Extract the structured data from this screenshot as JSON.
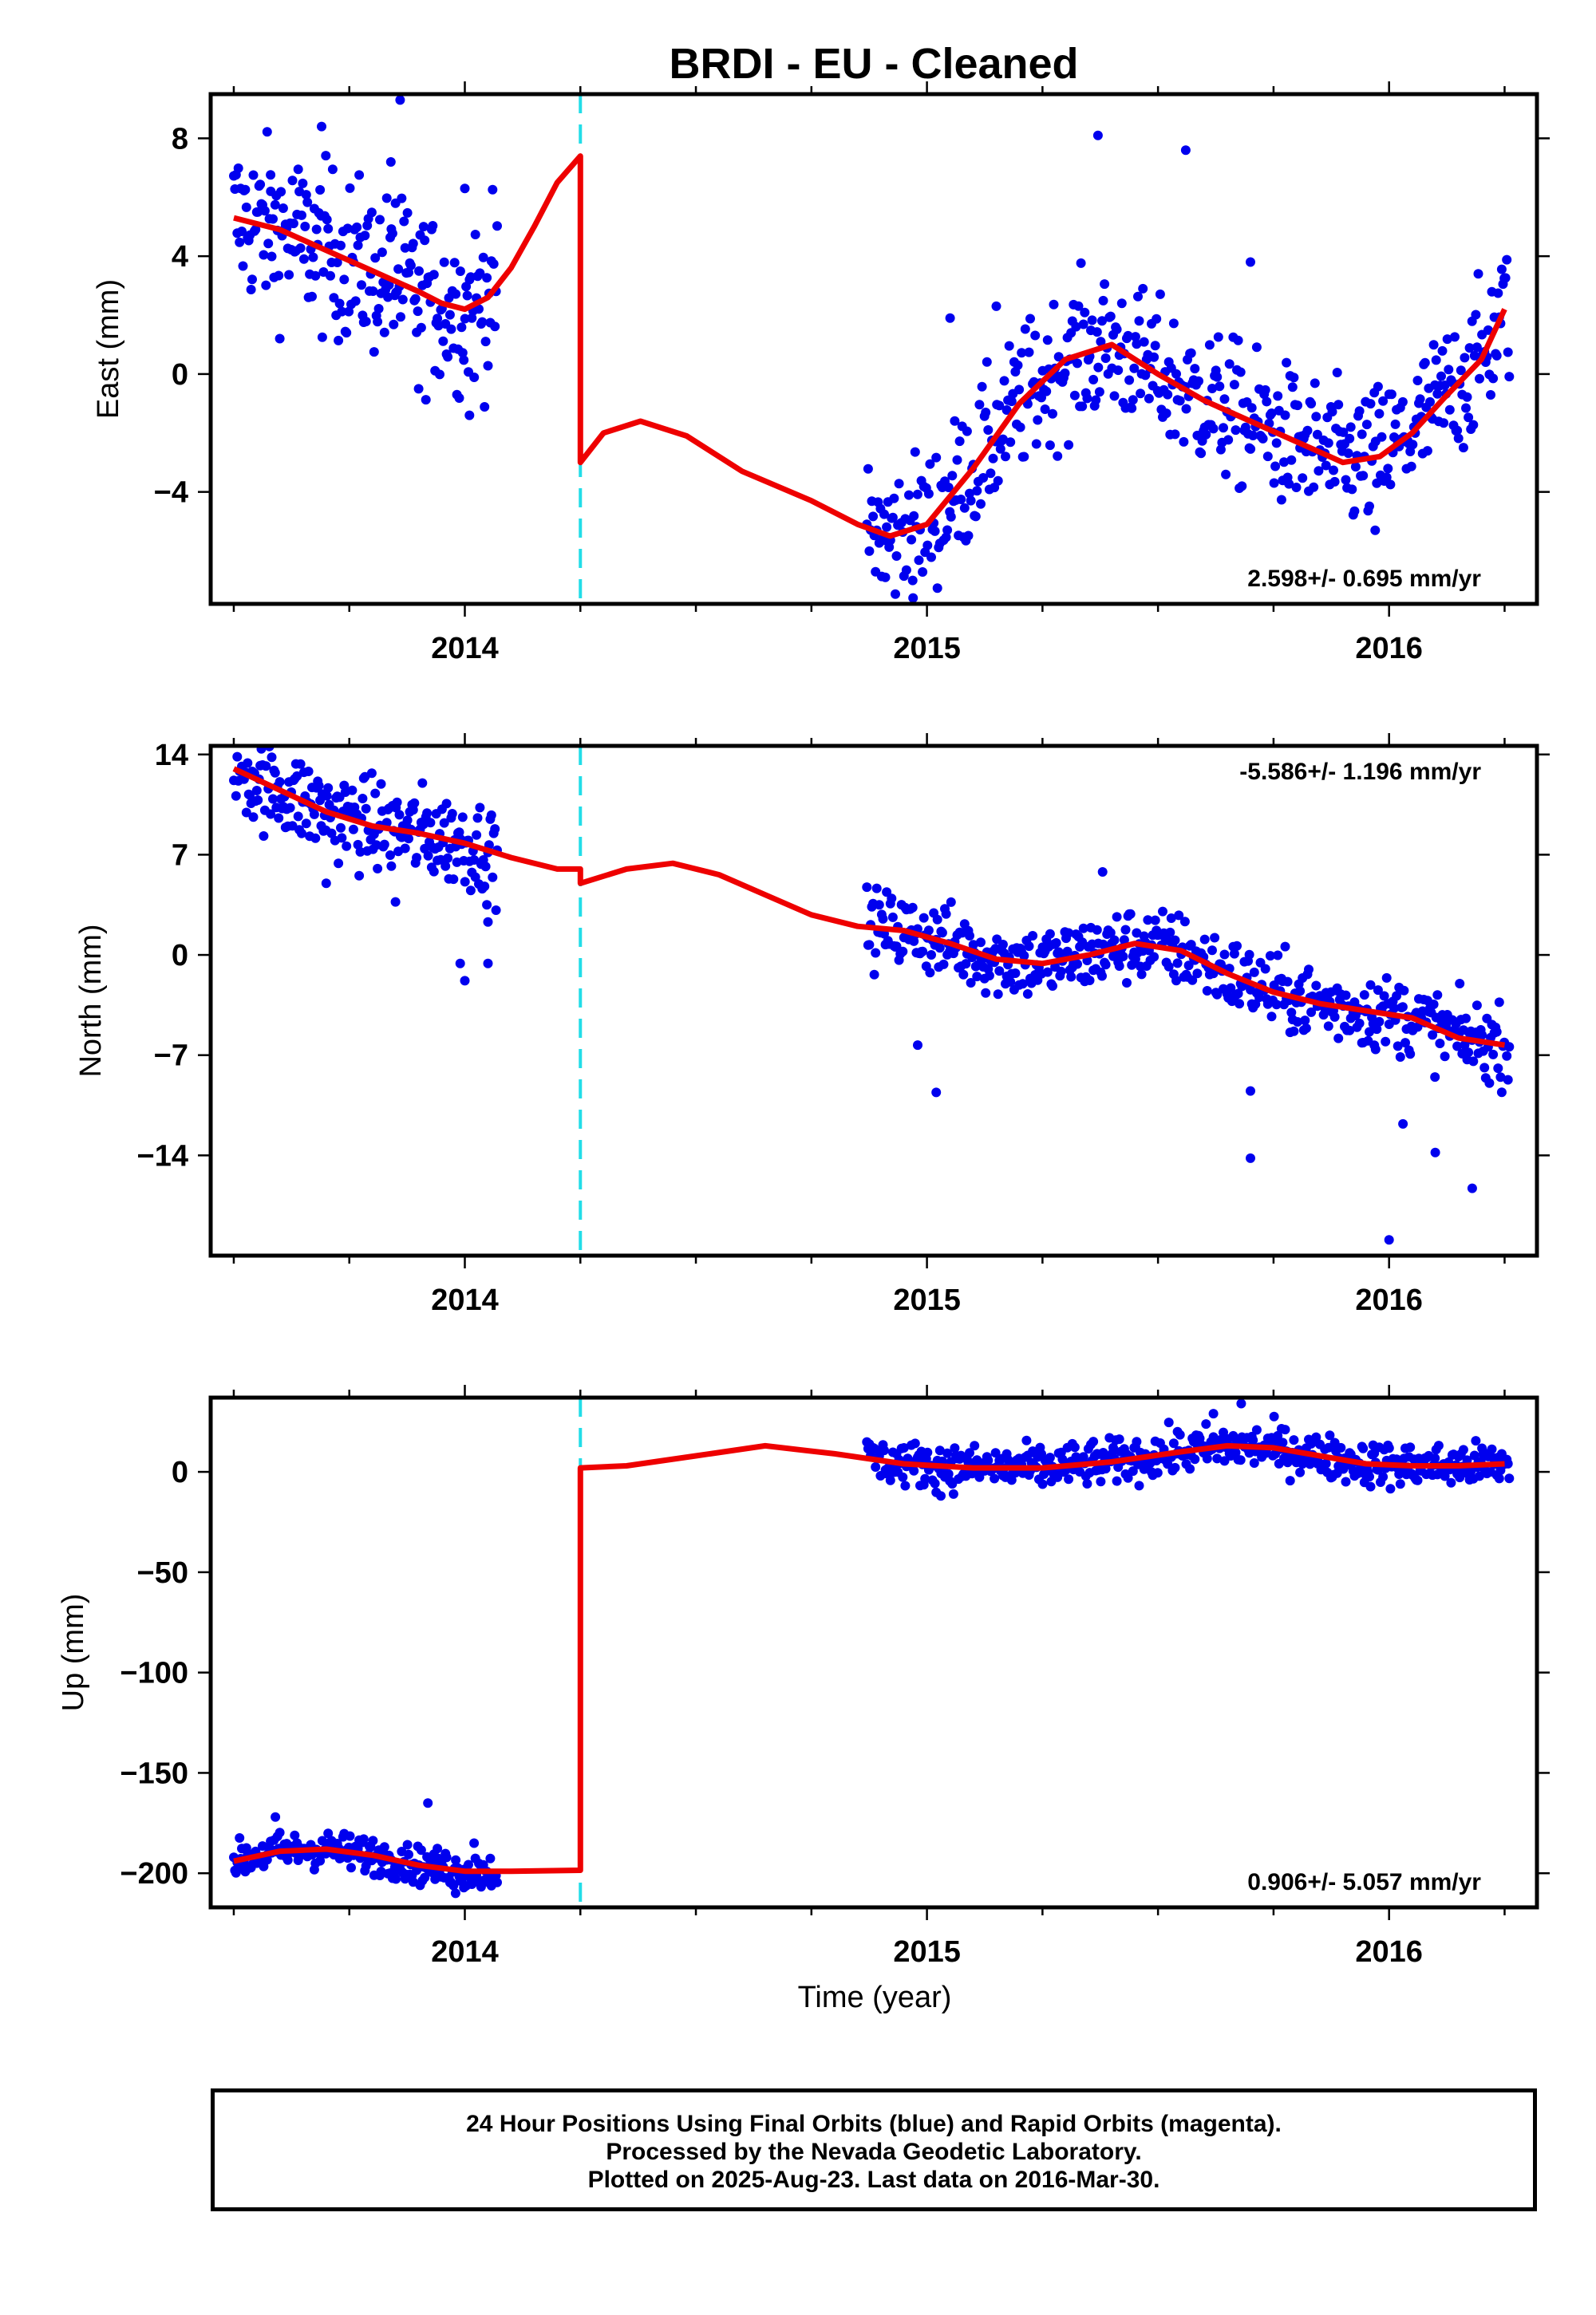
{
  "chart_data": {
    "title": "BRDI  - EU - Cleaned",
    "xlabel": "Time (year)",
    "x_range": [
      2013.45,
      2016.32
    ],
    "x_ticks": [
      2014,
      2015,
      2016
    ],
    "break_epoch": 2014.25,
    "colors": {
      "points": "#0000ee",
      "fit": "#ee0000",
      "break": "#22dde8"
    },
    "panels": [
      {
        "key": "east",
        "type": "scatter",
        "ylabel": "East (mm)",
        "ylim": [
          -7.8,
          9.5
        ],
        "y_ticks": [
          8,
          4,
          0,
          -4
        ],
        "rate": "2.598+/- 0.695 mm/yr",
        "fit": [
          [
            2013.5,
            5.3
          ],
          [
            2013.6,
            4.9
          ],
          [
            2013.7,
            4.2
          ],
          [
            2013.8,
            3.5
          ],
          [
            2013.9,
            2.8
          ],
          [
            2013.95,
            2.4
          ],
          [
            2014.0,
            2.2
          ],
          [
            2014.05,
            2.6
          ],
          [
            2014.1,
            3.6
          ],
          [
            2014.15,
            5.0
          ],
          [
            2014.2,
            6.5
          ],
          [
            2014.25,
            7.4
          ],
          [
            2014.25,
            -3.0
          ],
          [
            2014.3,
            -2.0
          ],
          [
            2014.38,
            -1.6
          ],
          [
            2014.48,
            -2.1
          ],
          [
            2014.6,
            -3.3
          ],
          [
            2014.75,
            -4.3
          ],
          [
            2014.85,
            -5.1
          ],
          [
            2014.92,
            -5.5
          ],
          [
            2015.0,
            -5.1
          ],
          [
            2015.1,
            -3.2
          ],
          [
            2015.2,
            -1.0
          ],
          [
            2015.3,
            0.5
          ],
          [
            2015.4,
            1.0
          ],
          [
            2015.5,
            0.0
          ],
          [
            2015.6,
            -0.9
          ],
          [
            2015.7,
            -1.6
          ],
          [
            2015.8,
            -2.3
          ],
          [
            2015.9,
            -3.0
          ],
          [
            2015.98,
            -2.8
          ],
          [
            2016.05,
            -2.0
          ],
          [
            2016.12,
            -0.8
          ],
          [
            2016.2,
            0.5
          ],
          [
            2016.25,
            2.2
          ]
        ],
        "segments": [
          {
            "x0": 2013.5,
            "x1": 2014.07,
            "n": 230,
            "spread": 1.4,
            "outliers": [
              [
                2013.69,
                8.4
              ],
              [
                2013.86,
                9.3
              ],
              [
                2013.84,
                7.2
              ],
              [
                2013.85,
                5.8
              ],
              [
                2013.9,
                -0.5
              ],
              [
                2014.01,
                -1.4
              ],
              [
                2013.58,
                6.2
              ],
              [
                2014.0,
                6.3
              ]
            ]
          },
          {
            "x0": 2014.87,
            "x1": 2016.26,
            "n": 520,
            "spread": 1.2,
            "outliers": [
              [
                2015.37,
                8.1
              ],
              [
                2015.56,
                7.6
              ],
              [
                2015.7,
                3.8
              ],
              [
                2015.97,
                -5.3
              ],
              [
                2014.97,
                -7.6
              ],
              [
                2014.91,
                -6.9
              ],
              [
                2015.15,
                2.3
              ],
              [
                2015.05,
                1.9
              ]
            ]
          }
        ]
      },
      {
        "key": "north",
        "type": "scatter",
        "ylabel": "North (mm)",
        "ylim": [
          -21,
          14.6
        ],
        "y_ticks": [
          14,
          7,
          0,
          -7,
          -14
        ],
        "rate": "-5.586+/- 1.196 mm/yr",
        "fit": [
          [
            2013.5,
            13.0
          ],
          [
            2013.6,
            11.5
          ],
          [
            2013.7,
            10.0
          ],
          [
            2013.8,
            9.0
          ],
          [
            2013.9,
            8.5
          ],
          [
            2014.0,
            7.8
          ],
          [
            2014.1,
            6.8
          ],
          [
            2014.2,
            6.0
          ],
          [
            2014.25,
            6.0
          ],
          [
            2014.25,
            5.0
          ],
          [
            2014.35,
            6.0
          ],
          [
            2014.45,
            6.4
          ],
          [
            2014.55,
            5.6
          ],
          [
            2014.65,
            4.2
          ],
          [
            2014.75,
            2.8
          ],
          [
            2014.85,
            2.0
          ],
          [
            2014.95,
            1.7
          ],
          [
            2015.05,
            0.8
          ],
          [
            2015.15,
            -0.3
          ],
          [
            2015.25,
            -0.6
          ],
          [
            2015.35,
            0.0
          ],
          [
            2015.45,
            0.8
          ],
          [
            2015.55,
            0.3
          ],
          [
            2015.65,
            -1.3
          ],
          [
            2015.75,
            -2.6
          ],
          [
            2015.85,
            -3.4
          ],
          [
            2015.95,
            -3.9
          ],
          [
            2016.05,
            -4.4
          ],
          [
            2016.15,
            -5.8
          ],
          [
            2016.25,
            -6.3
          ]
        ],
        "segments": [
          {
            "x0": 2013.5,
            "x1": 2014.07,
            "n": 230,
            "spread": 1.6,
            "outliers": [
              [
                2013.99,
                -0.6
              ],
              [
                2014.0,
                -1.8
              ],
              [
                2014.05,
                -0.6
              ],
              [
                2014.05,
                2.3
              ],
              [
                2013.85,
                3.7
              ],
              [
                2013.7,
                5.0
              ]
            ]
          },
          {
            "x0": 2014.87,
            "x1": 2016.26,
            "n": 520,
            "spread": 1.3,
            "outliers": [
              [
                2015.02,
                -9.6
              ],
              [
                2015.7,
                -14.2
              ],
              [
                2015.7,
                -9.5
              ],
              [
                2016.03,
                -11.8
              ],
              [
                2016.0,
                -19.9
              ],
              [
                2016.1,
                -13.8
              ],
              [
                2016.18,
                -16.3
              ],
              [
                2015.38,
                5.8
              ],
              [
                2014.98,
                -6.3
              ]
            ]
          }
        ]
      },
      {
        "key": "up",
        "type": "scatter",
        "ylabel": "Up (mm)",
        "ylim": [
          -217,
          37
        ],
        "y_ticks": [
          0,
          -50,
          -100,
          -150,
          -200
        ],
        "rate": "0.906+/- 5.057 mm/yr",
        "fit": [
          [
            2013.5,
            -194
          ],
          [
            2013.6,
            -189
          ],
          [
            2013.7,
            -188
          ],
          [
            2013.8,
            -191
          ],
          [
            2013.9,
            -196
          ],
          [
            2014.0,
            -199
          ],
          [
            2014.1,
            -199
          ],
          [
            2014.25,
            -198.5
          ],
          [
            2014.25,
            2
          ],
          [
            2014.35,
            3
          ],
          [
            2014.5,
            8
          ],
          [
            2014.65,
            13
          ],
          [
            2014.8,
            9
          ],
          [
            2014.95,
            4
          ],
          [
            2015.1,
            2
          ],
          [
            2015.25,
            2
          ],
          [
            2015.4,
            5
          ],
          [
            2015.55,
            10
          ],
          [
            2015.65,
            13
          ],
          [
            2015.75,
            12
          ],
          [
            2015.85,
            8
          ],
          [
            2015.95,
            4
          ],
          [
            2016.05,
            3
          ],
          [
            2016.15,
            3
          ],
          [
            2016.25,
            4
          ]
        ],
        "segments": [
          {
            "x0": 2013.5,
            "x1": 2014.07,
            "n": 230,
            "spread": 4.5,
            "outliers": [
              [
                2013.59,
                -172
              ],
              [
                2013.92,
                -165
              ],
              [
                2013.98,
                -210
              ],
              [
                2014.02,
                -185
              ]
            ]
          },
          {
            "x0": 2014.87,
            "x1": 2016.26,
            "n": 520,
            "spread": 5.5,
            "outliers": [
              [
                2015.68,
                34
              ],
              [
                2015.62,
                29
              ],
              [
                2015.03,
                -12
              ]
            ]
          }
        ]
      }
    ]
  },
  "footer": {
    "line1": "24 Hour Positions Using Final Orbits (blue) and Rapid Orbits (magenta).",
    "line2": "Processed by the Nevada Geodetic Laboratory.",
    "line3": "Plotted on 2025-Aug-23. Last data on 2016-Mar-30."
  }
}
